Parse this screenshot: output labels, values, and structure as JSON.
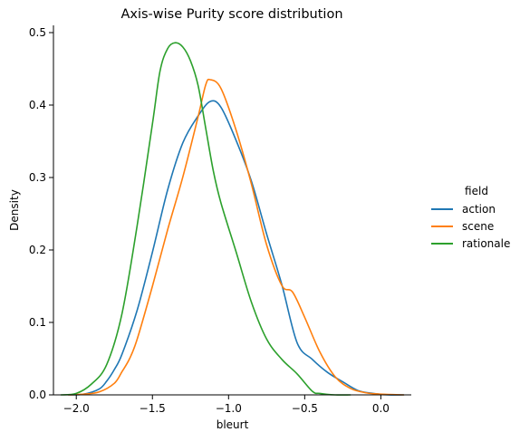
{
  "chart_data": {
    "type": "line",
    "title": "Axis-wise Purity score distribution",
    "xlabel": "bleurt",
    "ylabel": "Density",
    "xlim": [
      -2.15,
      0.2
    ],
    "ylim": [
      0,
      0.51
    ],
    "xticks": [
      -2.0,
      -1.5,
      -1.0,
      -0.5,
      0.0
    ],
    "xtick_labels": [
      "−2.0",
      "−1.5",
      "−1.0",
      "−0.5",
      "0.0"
    ],
    "yticks": [
      0.0,
      0.1,
      0.2,
      0.3,
      0.4,
      0.5
    ],
    "ytick_labels": [
      "0.0",
      "0.1",
      "0.2",
      "0.3",
      "0.4",
      "0.5"
    ],
    "grid": false,
    "legend": {
      "title": "field",
      "placement": "right"
    },
    "series": [
      {
        "name": "action",
        "color": "#1f77b4",
        "x": [
          -2.05,
          -1.95,
          -1.85,
          -1.8,
          -1.75,
          -1.7,
          -1.6,
          -1.5,
          -1.4,
          -1.3,
          -1.2,
          -1.12,
          -1.05,
          -0.95,
          -0.85,
          -0.75,
          -0.65,
          -0.55,
          -0.45,
          -0.35,
          -0.25,
          -0.15,
          -0.05,
          0.05,
          0.15
        ],
        "y": [
          0.0,
          0.001,
          0.008,
          0.019,
          0.035,
          0.056,
          0.117,
          0.197,
          0.283,
          0.348,
          0.385,
          0.405,
          0.397,
          0.351,
          0.295,
          0.222,
          0.152,
          0.072,
          0.049,
          0.031,
          0.018,
          0.006,
          0.002,
          0.0,
          0.0
        ]
      },
      {
        "name": "scene",
        "color": "#ff7f0e",
        "x": [
          -2.05,
          -1.95,
          -1.85,
          -1.75,
          -1.7,
          -1.65,
          -1.6,
          -1.5,
          -1.4,
          -1.3,
          -1.2,
          -1.15,
          -1.12,
          -1.05,
          -0.95,
          -0.85,
          -0.75,
          -0.65,
          -0.58,
          -0.5,
          -0.4,
          -0.3,
          -0.2,
          -0.1,
          0.0,
          0.15
        ],
        "y": [
          0.0,
          0.001,
          0.004,
          0.016,
          0.032,
          0.05,
          0.077,
          0.15,
          0.228,
          0.301,
          0.384,
          0.428,
          0.435,
          0.423,
          0.365,
          0.291,
          0.207,
          0.151,
          0.142,
          0.107,
          0.059,
          0.025,
          0.009,
          0.003,
          0.001,
          0.0
        ]
      },
      {
        "name": "rationale",
        "color": "#2ca02c",
        "x": [
          -2.1,
          -2.0,
          -1.9,
          -1.8,
          -1.7,
          -1.6,
          -1.5,
          -1.45,
          -1.4,
          -1.35,
          -1.3,
          -1.25,
          -1.2,
          -1.15,
          -1.1,
          -1.05,
          -0.95,
          -0.85,
          -0.75,
          -0.65,
          -0.55,
          -0.45,
          -0.4,
          -0.3,
          -0.2
        ],
        "y": [
          0.0,
          0.002,
          0.015,
          0.042,
          0.112,
          0.234,
          0.374,
          0.447,
          0.478,
          0.486,
          0.48,
          0.461,
          0.427,
          0.368,
          0.309,
          0.265,
          0.197,
          0.128,
          0.077,
          0.049,
          0.029,
          0.005,
          0.002,
          0.0,
          0.0
        ]
      }
    ]
  }
}
